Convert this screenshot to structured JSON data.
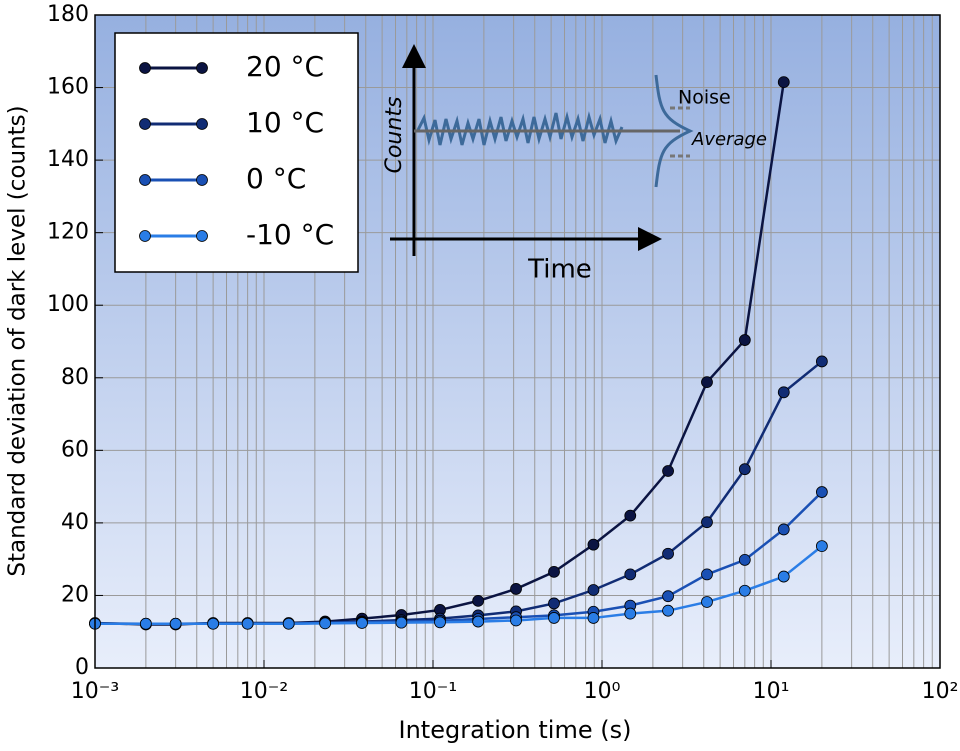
{
  "chart_data": {
    "type": "line",
    "x_label": "Integration time (s)",
    "y_label": "Standard deviation of dark level (counts)",
    "log_x": true,
    "grid": true,
    "legend_position": "upper left",
    "x": [
      0.001,
      0.002,
      0.003,
      0.005,
      0.008,
      0.014,
      0.023,
      0.038,
      0.065,
      0.11,
      0.185,
      0.31,
      0.52,
      0.89,
      1.47,
      2.46,
      4.18,
      7.0,
      11.9,
      20
    ],
    "series": [
      {
        "name": "20 °C",
        "color": "#0b1442",
        "values": [
          12.4,
          12.0,
          12.0,
          12.4,
          12.4,
          12.4,
          12.8,
          13.6,
          14.6,
          16.0,
          18.5,
          21.8,
          26.5,
          34.0,
          42.0,
          54.3,
          78.8,
          90.4,
          161.5,
          null
        ]
      },
      {
        "name": "10 °C",
        "color": "#112c74",
        "values": [
          12.3,
          12.2,
          12.2,
          12.3,
          12.3,
          12.3,
          12.5,
          12.8,
          13.2,
          13.6,
          14.5,
          15.6,
          17.8,
          21.5,
          25.8,
          31.5,
          40.2,
          54.8,
          76.0,
          84.5
        ]
      },
      {
        "name": "0 °C",
        "color": "#1a50b4",
        "values": [
          12.2,
          12.2,
          12.2,
          12.2,
          12.2,
          12.2,
          12.4,
          12.6,
          12.8,
          13.0,
          13.5,
          14.0,
          14.5,
          15.5,
          17.2,
          19.8,
          25.8,
          29.8,
          38.2,
          48.5
        ]
      },
      {
        "name": "-10 °C",
        "color": "#2a7de6",
        "values": [
          12.2,
          12.2,
          12.2,
          12.2,
          12.2,
          12.2,
          12.3,
          12.4,
          12.5,
          12.6,
          12.8,
          13.1,
          13.8,
          13.8,
          15.0,
          15.8,
          18.2,
          21.3,
          25.2,
          33.6
        ]
      }
    ],
    "xlim": [
      0.001,
      100
    ],
    "ylim": [
      0,
      180
    ],
    "xticks": [
      {
        "value": 0.001,
        "label": "10⁻³"
      },
      {
        "value": 0.01,
        "label": "10⁻²"
      },
      {
        "value": 0.1,
        "label": "10⁻¹"
      },
      {
        "value": 1,
        "label": "10⁰"
      },
      {
        "value": 10,
        "label": "10¹"
      },
      {
        "value": 100,
        "label": "10²"
      }
    ],
    "yticks": [
      0,
      20,
      40,
      60,
      80,
      100,
      120,
      140,
      160,
      180
    ],
    "inset": {
      "y_label": "Counts",
      "x_label": "Time",
      "noise": "Noise",
      "average": "Average"
    }
  }
}
